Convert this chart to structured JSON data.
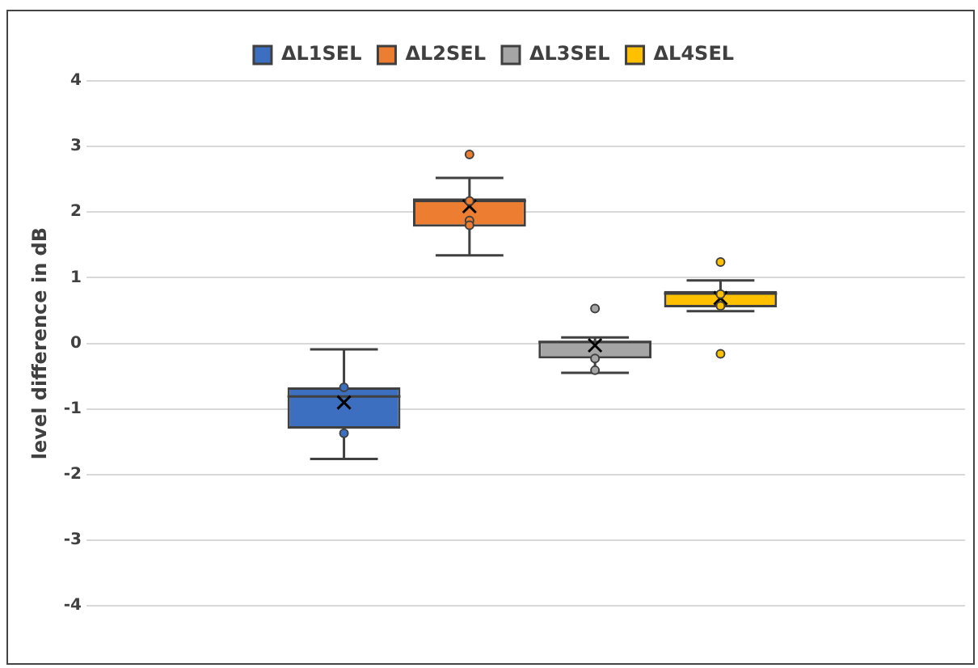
{
  "chart_data": {
    "type": "box",
    "ylabel": "level difference in dB",
    "categories": [
      null
    ],
    "ylim": [
      -4,
      4
    ],
    "yticks": [
      -4,
      -3,
      -2,
      -1,
      0,
      1,
      2,
      3,
      4
    ],
    "grid": "y",
    "legend": "top",
    "series": [
      {
        "name": "ΔL1SEL",
        "color": "#3d6fc0",
        "boxes": [
          {
            "low": -1.76,
            "q1": -1.3,
            "median": -0.81,
            "q3": -0.67,
            "high": -0.09,
            "mean": -0.9,
            "outliers": [
              -0.67,
              -1.37
            ]
          }
        ]
      },
      {
        "name": "ΔL2SEL",
        "color": "#ed7d31",
        "boxes": [
          {
            "low": 1.34,
            "q1": 1.78,
            "median": 2.17,
            "q3": 2.21,
            "high": 2.52,
            "mean": 2.09,
            "outliers": [
              2.88,
              2.17,
              1.87,
              1.8
            ]
          }
        ]
      },
      {
        "name": "ΔL3SEL",
        "color": "#a5a5a5",
        "boxes": [
          {
            "low": -0.45,
            "q1": -0.23,
            "median": 0.02,
            "q3": 0.04,
            "high": 0.09,
            "mean": -0.03,
            "outliers": [
              0.53,
              -0.23,
              -0.41
            ]
          }
        ]
      },
      {
        "name": "ΔL4SEL",
        "color": "#ffc000",
        "boxes": [
          {
            "low": 0.49,
            "q1": 0.55,
            "median": 0.76,
            "q3": 0.8,
            "high": 0.96,
            "mean": 0.69,
            "outliers": [
              1.24,
              -0.16,
              0.75,
              0.57
            ]
          }
        ]
      }
    ]
  }
}
